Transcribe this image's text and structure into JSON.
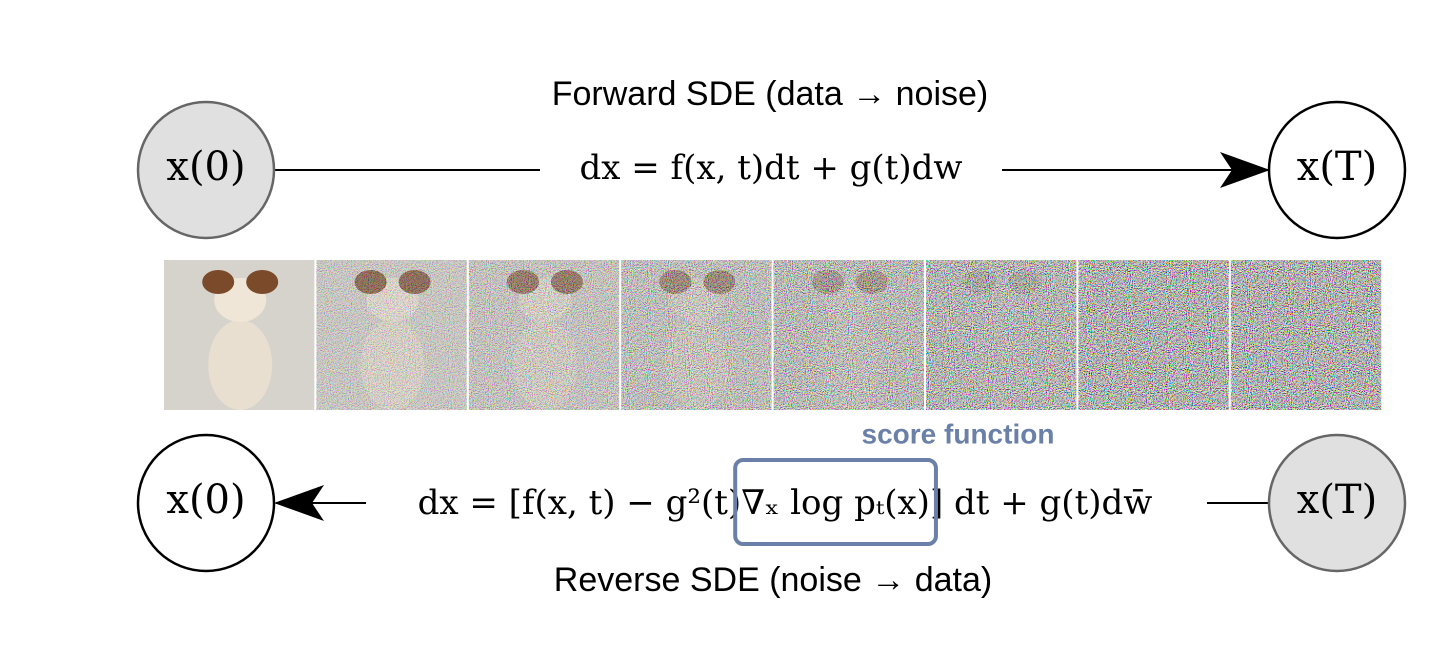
{
  "forward": {
    "title": "Forward SDE (data → noise)",
    "equation": "dx = f(x, t)dt + g(t)dw",
    "start_node": "x(0)",
    "end_node": "x(T)"
  },
  "reverse": {
    "title": "Reverse SDE (noise → data)",
    "equation_parts": [
      "dx = [f(x, t) − g²(t)",
      "∇ₓ log pₜ(x)",
      "] dt + g(t)dw̄"
    ],
    "score_label": "score function",
    "start_node": "x(T)",
    "end_node": "x(0)"
  }
}
